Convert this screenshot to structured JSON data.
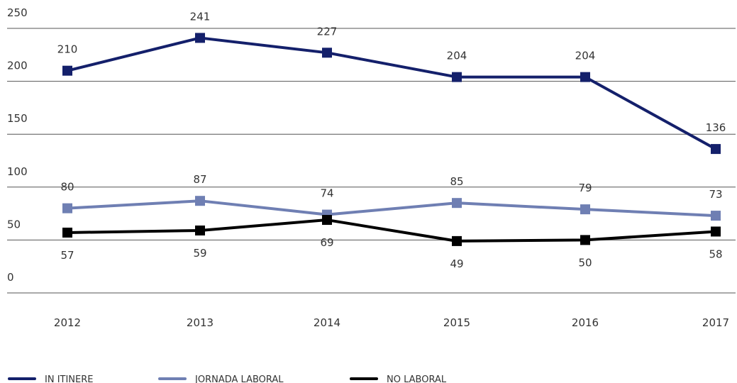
{
  "chart_data": {
    "type": "line",
    "categories": [
      "2012",
      "2013",
      "2014",
      "2015",
      "2016",
      "2017"
    ],
    "ylim": [
      0,
      250
    ],
    "yticks": [
      "0",
      "50",
      "100",
      "150",
      "200",
      "250"
    ],
    "grid": true,
    "legend_position": "bottom-left",
    "series": [
      {
        "name": "IN ITINERE",
        "color": "#14206b",
        "values": [
          210,
          241,
          227,
          204,
          204,
          136
        ],
        "labels": [
          "210",
          "241",
          "227",
          "204",
          "204",
          "136"
        ],
        "label_side": "above"
      },
      {
        "name": "JORNADA LABORAL",
        "color": "#6f7fb3",
        "values": [
          80,
          87,
          74,
          85,
          79,
          73
        ],
        "labels": [
          "80",
          "87",
          "74",
          "85",
          "79",
          "73"
        ],
        "label_side": "above"
      },
      {
        "name": "NO LABORAL",
        "color": "#000000",
        "values": [
          57,
          59,
          69,
          49,
          50,
          58
        ],
        "labels": [
          "57",
          "59",
          "69",
          "49",
          "50",
          "58"
        ],
        "label_side": "below"
      }
    ]
  }
}
